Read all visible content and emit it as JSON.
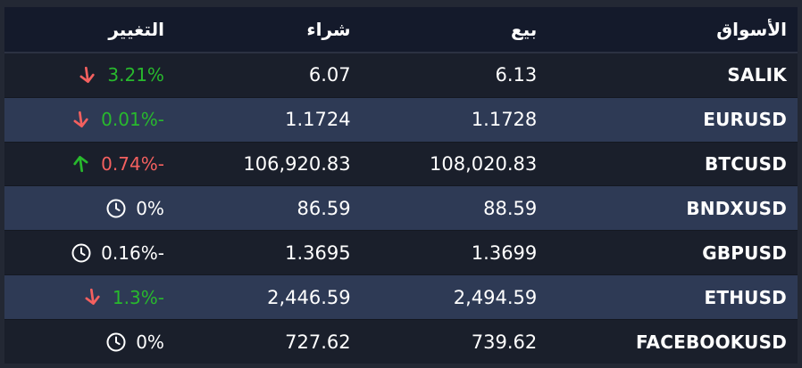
{
  "colors": {
    "frame": "#232834",
    "header_bg": "#141a2b",
    "row_dark": "#1a1f2b",
    "row_blue": "#2e3a55",
    "text": "#ffffff",
    "green": "#28b92d",
    "red": "#f4605f"
  },
  "header": {
    "markets": "الأسواق",
    "sell": "بيع",
    "buy": "شراء",
    "change": "التغيير"
  },
  "rows": [
    {
      "market": "SALIK",
      "sell": "6.13",
      "buy": "6.07",
      "change": "3.21%",
      "change_color": "green",
      "icon": "arrow-down",
      "icon_color": "red",
      "highlighted": false
    },
    {
      "market": "EURUSD",
      "sell": "1.1728",
      "buy": "1.1724",
      "change": "-0.01%",
      "change_color": "green",
      "icon": "arrow-down",
      "icon_color": "red",
      "highlighted": true
    },
    {
      "market": "BTCUSD",
      "sell": "108,020.83",
      "buy": "106,920.83",
      "change": "-0.74%",
      "change_color": "red",
      "icon": "arrow-up",
      "icon_color": "green",
      "highlighted": false
    },
    {
      "market": "BNDXUSD",
      "sell": "88.59",
      "buy": "86.59",
      "change": "0%",
      "change_color": "white",
      "icon": "clock",
      "icon_color": "white",
      "highlighted": true
    },
    {
      "market": "GBPUSD",
      "sell": "1.3699",
      "buy": "1.3695",
      "change": "-0.16%",
      "change_color": "white",
      "icon": "clock",
      "icon_color": "white",
      "highlighted": false
    },
    {
      "market": "ETHUSD",
      "sell": "2,494.59",
      "buy": "2,446.59",
      "change": "-1.3%",
      "change_color": "green",
      "icon": "arrow-down",
      "icon_color": "red",
      "highlighted": true
    },
    {
      "market": "FACEBOOKUSD",
      "sell": "739.62",
      "buy": "727.62",
      "change": "0%",
      "change_color": "white",
      "icon": "clock",
      "icon_color": "white",
      "highlighted": false
    }
  ]
}
